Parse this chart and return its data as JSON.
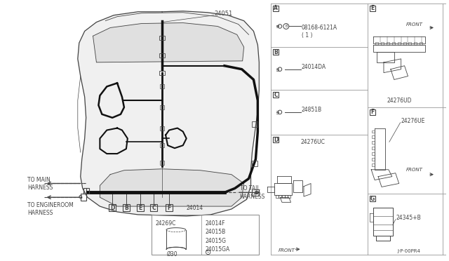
{
  "bg_color": "#ffffff",
  "lc": "#444444",
  "tlc": "#111111",
  "part_numbers": {
    "main_harness": "24051",
    "floor_harness": "24014",
    "grommet": "24269C",
    "grommet_dia": "Ø30",
    "parts_list": "24014F\n24015B\n24015G\n24015GA",
    "A_label": "08168-6121A\n( 1 )",
    "B_label": "24014DA",
    "C_label": "24851B",
    "D_label": "24276UC",
    "E_label": "24276UD",
    "F_label": "24276UE",
    "G_label": "24345+B",
    "copyright": "J·P·00PR4"
  }
}
